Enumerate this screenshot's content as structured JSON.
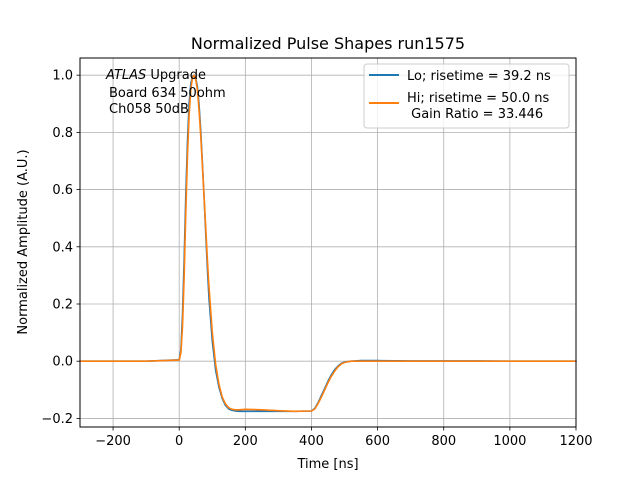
{
  "chart_data": {
    "type": "line",
    "title": "Normalized Pulse Shapes run1575",
    "xlabel": "Time [ns]",
    "ylabel": "Normalized Amplitude (A.U.)",
    "xlim": [
      -300,
      1200
    ],
    "ylim": [
      -0.23,
      1.06
    ],
    "grid": true,
    "legend_placement": "top-right",
    "x_ticks": [
      -200,
      0,
      200,
      400,
      600,
      800,
      1000,
      1200
    ],
    "x_tick_labels": [
      "−200",
      "0",
      "200",
      "400",
      "600",
      "800",
      "1000",
      "1200"
    ],
    "y_ticks": [
      -0.2,
      0.0,
      0.2,
      0.4,
      0.6,
      0.8,
      1.0
    ],
    "y_tick_labels": [
      "−0.2",
      "0.0",
      "0.2",
      "0.4",
      "0.6",
      "0.8",
      "1.0"
    ],
    "annotation": {
      "atlas": "ATLAS",
      "line1_rest": " Upgrade",
      "line2": "Board 634 50ohm",
      "line3": "Ch058 50dB"
    },
    "series": [
      {
        "name": "Lo; risetime = 39.2 ns",
        "color": "#1f77b4",
        "x": [
          -300,
          -100,
          0,
          5,
          10,
          15,
          20,
          25,
          30,
          35,
          40,
          45,
          50,
          55,
          60,
          65,
          70,
          75,
          80,
          85,
          90,
          100,
          110,
          120,
          130,
          140,
          150,
          160,
          170,
          180,
          200,
          250,
          300,
          350,
          400,
          410,
          420,
          430,
          440,
          450,
          460,
          470,
          480,
          490,
          500,
          520,
          550,
          600,
          700,
          800,
          900,
          1000,
          1100,
          1200
        ],
        "y": [
          0.0,
          0.0,
          0.005,
          0.04,
          0.16,
          0.36,
          0.58,
          0.77,
          0.9,
          0.97,
          0.995,
          1.0,
          0.99,
          0.96,
          0.9,
          0.81,
          0.7,
          0.58,
          0.45,
          0.33,
          0.22,
          0.07,
          -0.03,
          -0.09,
          -0.13,
          -0.155,
          -0.167,
          -0.172,
          -0.174,
          -0.175,
          -0.175,
          -0.175,
          -0.175,
          -0.175,
          -0.174,
          -0.165,
          -0.145,
          -0.12,
          -0.095,
          -0.07,
          -0.048,
          -0.03,
          -0.017,
          -0.008,
          -0.003,
          0.0,
          0.002,
          0.002,
          0.001,
          0.001,
          0.001,
          0.0,
          0.0,
          0.0
        ]
      },
      {
        "name": "Hi; risetime = 50.0 ns\n Gain Ratio = 33.446",
        "color": "#ff7f0e",
        "x": [
          -300,
          -100,
          0,
          5,
          10,
          15,
          20,
          25,
          30,
          35,
          40,
          45,
          50,
          55,
          60,
          65,
          70,
          75,
          80,
          85,
          90,
          100,
          110,
          120,
          130,
          140,
          150,
          160,
          170,
          180,
          200,
          250,
          300,
          350,
          400,
          410,
          420,
          430,
          440,
          450,
          460,
          470,
          480,
          490,
          500,
          520,
          550,
          600,
          700,
          800,
          900,
          1000,
          1100,
          1200
        ],
        "y": [
          0.0,
          0.0,
          0.004,
          0.03,
          0.12,
          0.3,
          0.52,
          0.72,
          0.86,
          0.95,
          0.99,
          1.0,
          0.985,
          0.95,
          0.88,
          0.79,
          0.69,
          0.58,
          0.47,
          0.36,
          0.26,
          0.1,
          -0.01,
          -0.08,
          -0.125,
          -0.15,
          -0.163,
          -0.168,
          -0.17,
          -0.17,
          -0.168,
          -0.17,
          -0.173,
          -0.175,
          -0.174,
          -0.167,
          -0.148,
          -0.125,
          -0.1,
          -0.075,
          -0.053,
          -0.035,
          -0.02,
          -0.01,
          -0.004,
          0.0,
          0.0,
          0.0,
          0.0,
          0.0,
          0.0,
          0.0,
          0.0,
          0.0
        ]
      }
    ]
  }
}
